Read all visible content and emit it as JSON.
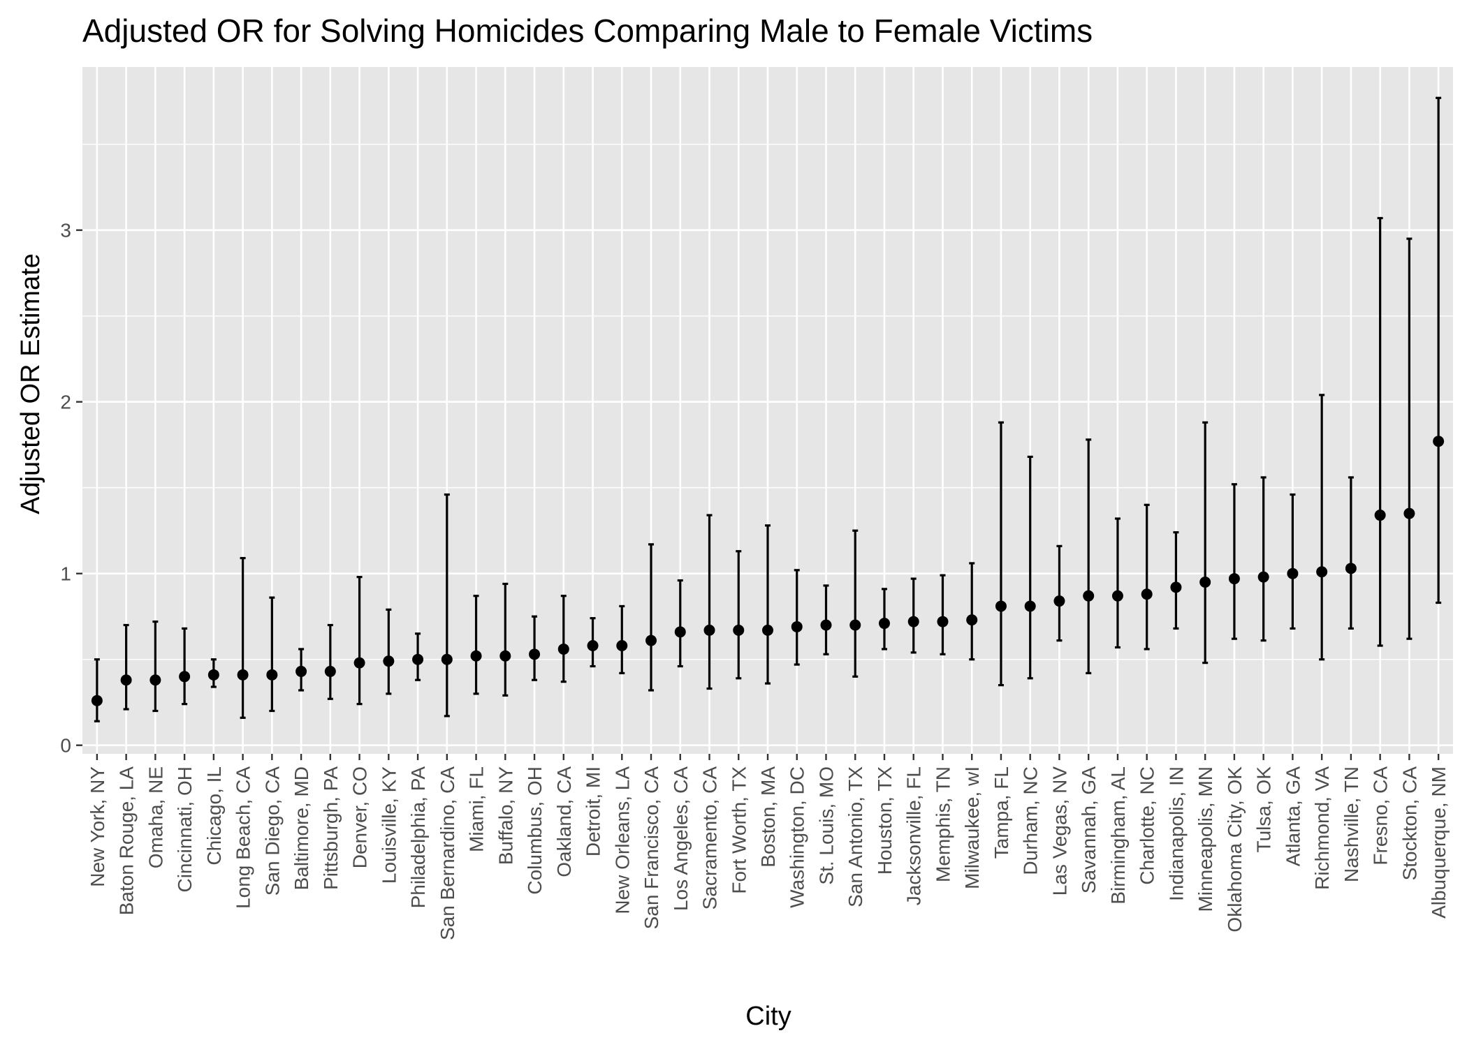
{
  "chart_data": {
    "type": "errorbar",
    "title": "Adjusted OR for Solving Homicides Comparing Male to Female Victims",
    "xlabel": "City",
    "ylabel": "Adjusted OR Estimate",
    "ylim": [
      -0.05,
      3.95
    ],
    "yticks": [
      0,
      1,
      2,
      3
    ],
    "grid": true,
    "legend": "none",
    "colors": {
      "panel": "#e6e6e6",
      "grid_major": "#ffffff",
      "marks": "#000000",
      "tick_text": "#4d4d4d"
    },
    "points": [
      {
        "city": "New York, NY",
        "or": 0.26,
        "lo": 0.14,
        "hi": 0.5
      },
      {
        "city": "Baton Rouge, LA",
        "or": 0.38,
        "lo": 0.21,
        "hi": 0.7
      },
      {
        "city": "Omaha, NE",
        "or": 0.38,
        "lo": 0.2,
        "hi": 0.72
      },
      {
        "city": "Cincinnati, OH",
        "or": 0.4,
        "lo": 0.24,
        "hi": 0.68
      },
      {
        "city": "Chicago, IL",
        "or": 0.41,
        "lo": 0.34,
        "hi": 0.5
      },
      {
        "city": "Long Beach, CA",
        "or": 0.41,
        "lo": 0.16,
        "hi": 1.09
      },
      {
        "city": "San Diego, CA",
        "or": 0.41,
        "lo": 0.2,
        "hi": 0.86
      },
      {
        "city": "Baltimore, MD",
        "or": 0.43,
        "lo": 0.32,
        "hi": 0.56
      },
      {
        "city": "Pittsburgh, PA",
        "or": 0.43,
        "lo": 0.27,
        "hi": 0.7
      },
      {
        "city": "Denver, CO",
        "or": 0.48,
        "lo": 0.24,
        "hi": 0.98
      },
      {
        "city": "Louisville, KY",
        "or": 0.49,
        "lo": 0.3,
        "hi": 0.79
      },
      {
        "city": "Philadelphia, PA",
        "or": 0.5,
        "lo": 0.38,
        "hi": 0.65
      },
      {
        "city": "San Bernardino, CA",
        "or": 0.5,
        "lo": 0.17,
        "hi": 1.46
      },
      {
        "city": "Miami, FL",
        "or": 0.52,
        "lo": 0.3,
        "hi": 0.87
      },
      {
        "city": "Buffalo, NY",
        "or": 0.52,
        "lo": 0.29,
        "hi": 0.94
      },
      {
        "city": "Columbus, OH",
        "or": 0.53,
        "lo": 0.38,
        "hi": 0.75
      },
      {
        "city": "Oakland, CA",
        "or": 0.56,
        "lo": 0.37,
        "hi": 0.87
      },
      {
        "city": "Detroit, MI",
        "or": 0.58,
        "lo": 0.46,
        "hi": 0.74
      },
      {
        "city": "New Orleans, LA",
        "or": 0.58,
        "lo": 0.42,
        "hi": 0.81
      },
      {
        "city": "San Francisco, CA",
        "or": 0.61,
        "lo": 0.32,
        "hi": 1.17
      },
      {
        "city": "Los Angeles, CA",
        "or": 0.66,
        "lo": 0.46,
        "hi": 0.96
      },
      {
        "city": "Sacramento, CA",
        "or": 0.67,
        "lo": 0.33,
        "hi": 1.34
      },
      {
        "city": "Fort Worth, TX",
        "or": 0.67,
        "lo": 0.39,
        "hi": 1.13
      },
      {
        "city": "Boston, MA",
        "or": 0.67,
        "lo": 0.36,
        "hi": 1.28
      },
      {
        "city": "Washington, DC",
        "or": 0.69,
        "lo": 0.47,
        "hi": 1.02
      },
      {
        "city": "St. Louis, MO",
        "or": 0.7,
        "lo": 0.53,
        "hi": 0.93
      },
      {
        "city": "San Antonio, TX",
        "or": 0.7,
        "lo": 0.4,
        "hi": 1.25
      },
      {
        "city": "Houston, TX",
        "or": 0.71,
        "lo": 0.56,
        "hi": 0.91
      },
      {
        "city": "Jacksonville, FL",
        "or": 0.72,
        "lo": 0.54,
        "hi": 0.97
      },
      {
        "city": "Memphis, TN",
        "or": 0.72,
        "lo": 0.53,
        "hi": 0.99
      },
      {
        "city": "Milwaukee, wI",
        "or": 0.73,
        "lo": 0.5,
        "hi": 1.06
      },
      {
        "city": "Tampa, FL",
        "or": 0.81,
        "lo": 0.35,
        "hi": 1.88
      },
      {
        "city": "Durham, NC",
        "or": 0.81,
        "lo": 0.39,
        "hi": 1.68
      },
      {
        "city": "Las Vegas, NV",
        "or": 0.84,
        "lo": 0.61,
        "hi": 1.16
      },
      {
        "city": "Savannah, GA",
        "or": 0.87,
        "lo": 0.42,
        "hi": 1.78
      },
      {
        "city": "Birmingham, AL",
        "or": 0.87,
        "lo": 0.57,
        "hi": 1.32
      },
      {
        "city": "Charlotte, NC",
        "or": 0.88,
        "lo": 0.56,
        "hi": 1.4
      },
      {
        "city": "Indianapolis, IN",
        "or": 0.92,
        "lo": 0.68,
        "hi": 1.24
      },
      {
        "city": "Minneapolis, MN",
        "or": 0.95,
        "lo": 0.48,
        "hi": 1.88
      },
      {
        "city": "Oklahoma City, OK",
        "or": 0.97,
        "lo": 0.62,
        "hi": 1.52
      },
      {
        "city": "Tulsa, OK",
        "or": 0.98,
        "lo": 0.61,
        "hi": 1.56
      },
      {
        "city": "Atlanta, GA",
        "or": 1.0,
        "lo": 0.68,
        "hi": 1.46
      },
      {
        "city": "Richmond, VA",
        "or": 1.01,
        "lo": 0.5,
        "hi": 2.04
      },
      {
        "city": "Nashville, TN",
        "or": 1.03,
        "lo": 0.68,
        "hi": 1.56
      },
      {
        "city": "Fresno, CA",
        "or": 1.34,
        "lo": 0.58,
        "hi": 3.07
      },
      {
        "city": "Stockton, CA",
        "or": 1.35,
        "lo": 0.62,
        "hi": 2.95
      },
      {
        "city": "Albuquerque, NM",
        "or": 1.77,
        "lo": 0.83,
        "hi": 3.77
      }
    ]
  }
}
